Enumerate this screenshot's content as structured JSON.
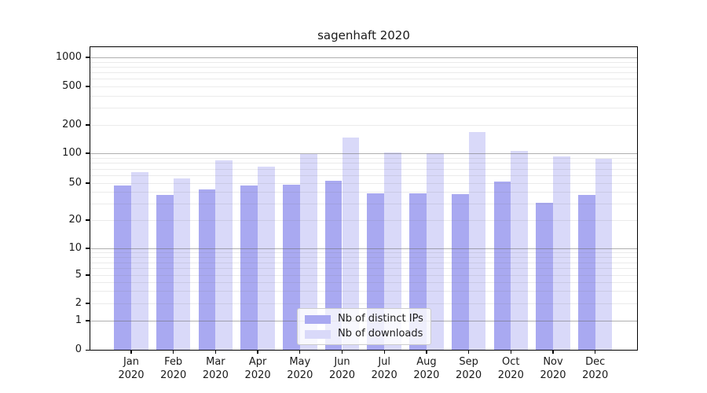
{
  "title": "sagenhaft 2020",
  "chart_data": {
    "type": "bar",
    "title": "sagenhaft 2020",
    "categories": [
      "Jan 2020",
      "Feb 2020",
      "Mar 2020",
      "Apr 2020",
      "May 2020",
      "Jun 2020",
      "Jul 2020",
      "Aug 2020",
      "Sep 2020",
      "Oct 2020",
      "Nov 2020",
      "Dec 2020"
    ],
    "series": [
      {
        "name": "Nb of distinct IPs",
        "color": "#a9a9f1",
        "values": [
          47,
          37,
          43,
          47,
          48,
          53,
          39,
          39,
          38,
          52,
          31,
          37
        ]
      },
      {
        "name": "Nb of downloads",
        "color": "#d9d9f9",
        "values": [
          65,
          56,
          85,
          73,
          99,
          147,
          102,
          100,
          168,
          106,
          93,
          88
        ]
      }
    ],
    "yscale": "symlog",
    "y_ticks": [
      0,
      1,
      2,
      5,
      10,
      20,
      50,
      100,
      200,
      500,
      1000
    ],
    "ylim": [
      0,
      1280
    ],
    "xlabel": "",
    "ylabel": "",
    "grid": "both",
    "legend": {
      "position": "lower center",
      "entries": [
        "Nb of distinct IPs",
        "Nb of downloads"
      ]
    }
  }
}
